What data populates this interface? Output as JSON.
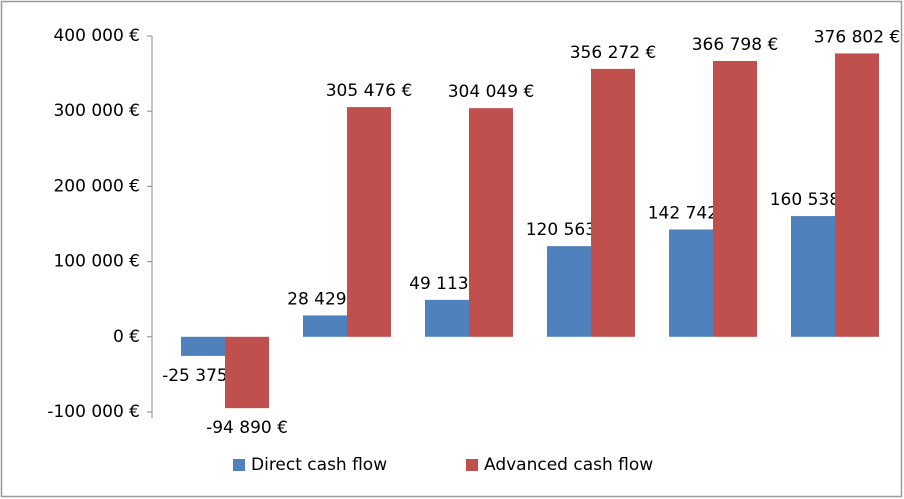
{
  "chart_data": {
    "type": "bar",
    "categories": [
      null,
      null,
      null,
      null,
      null,
      null
    ],
    "series": [
      {
        "name": "Direct cash flow",
        "color": "#4f81bd",
        "values": [
          -25375,
          28429,
          49113,
          120563,
          142742,
          160538
        ],
        "value_labels": [
          "-25 375 €",
          "28 429 €",
          "49 113 €",
          "120 563 €",
          "142 742 €",
          "160 538 €"
        ]
      },
      {
        "name": "Advanced cash flow",
        "color": "#c0504d",
        "values": [
          -94890,
          305476,
          304049,
          356272,
          366798,
          376802
        ],
        "value_labels": [
          "-94 890 €",
          "305 476 €",
          "304 049 €",
          "356 272 €",
          "366 798 €",
          "376 802 €"
        ]
      }
    ],
    "ylim": [
      -100000,
      400000
    ],
    "yticks": [
      {
        "value": -100000,
        "label": "-100 000 €"
      },
      {
        "value": 0,
        "label": "0 €"
      },
      {
        "value": 100000,
        "label": "100 000 €"
      },
      {
        "value": 200000,
        "label": "200 000 €"
      },
      {
        "value": 300000,
        "label": "300 000 €"
      },
      {
        "value": 400000,
        "label": "400 000 €"
      }
    ],
    "grid": false,
    "legend": "bottom"
  }
}
